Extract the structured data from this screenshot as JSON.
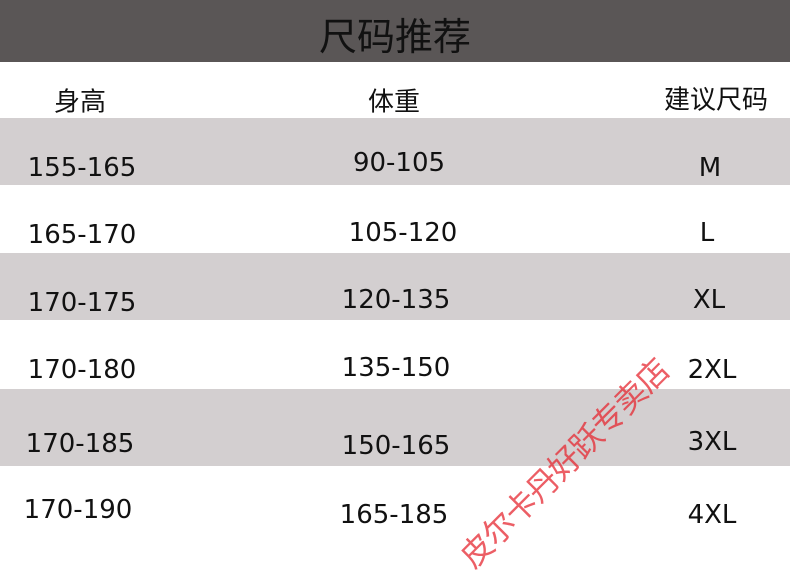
{
  "title": "尺码推荐",
  "headers": [
    "身高",
    "体重",
    "建议尺码"
  ],
  "rows": [
    [
      "155-165",
      "90-105",
      "M"
    ],
    [
      "165-170",
      "105-120",
      "L"
    ],
    [
      "170-175",
      "120-135",
      "XL"
    ],
    [
      "170-180",
      "135-150",
      "2XL"
    ],
    [
      "170-185",
      "150-165",
      "3XL"
    ],
    [
      "170-190",
      "165-185",
      "4XL"
    ]
  ],
  "watermark": "皮尔卡丹好跃专卖店",
  "colors": {
    "header_bar": "#5a5656",
    "stripe": "#d3cfd0",
    "watermark": "#e62832"
  }
}
